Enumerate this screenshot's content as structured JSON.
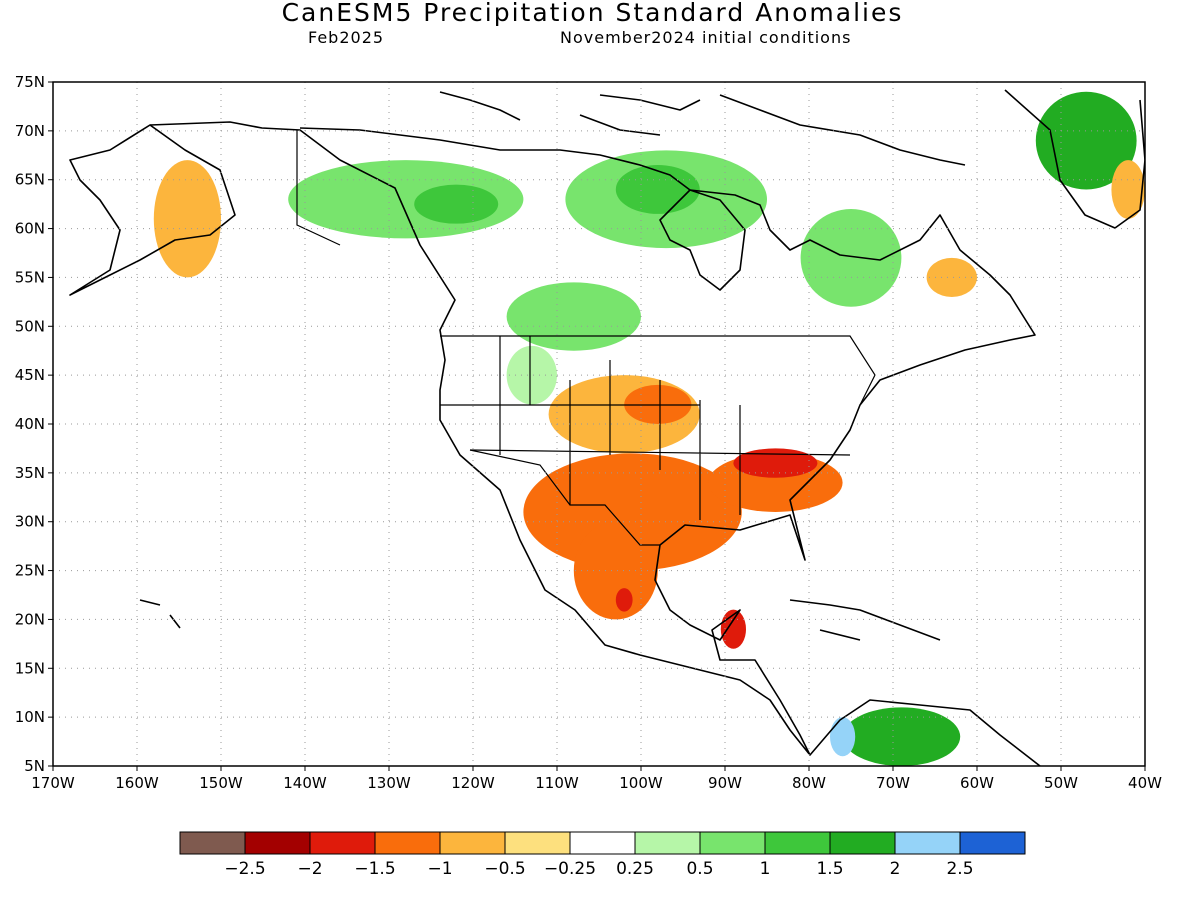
{
  "header": {
    "title": "CanESM5 Precipitation Standard Anomalies",
    "valid_month": "Feb2025",
    "initial_conditions": "November2024 initial conditions"
  },
  "map": {
    "lon_range": [
      -170,
      -40
    ],
    "lat_range": [
      5,
      75
    ],
    "lon_ticks": [
      "170W",
      "160W",
      "150W",
      "140W",
      "130W",
      "120W",
      "110W",
      "100W",
      "90W",
      "80W",
      "70W",
      "60W",
      "50W",
      "40W"
    ],
    "lat_ticks": [
      "75N",
      "70N",
      "65N",
      "60N",
      "55N",
      "50N",
      "45N",
      "40N",
      "35N",
      "30N",
      "25N",
      "20N",
      "15N",
      "10N",
      "5N"
    ],
    "grid": "dotted"
  },
  "colorbar": {
    "colors": [
      "#7f5a4f",
      "#a30000",
      "#df1b0b",
      "#f96d0c",
      "#fcb53d",
      "#fde07e",
      "#ffffff",
      "#b6f6a8",
      "#78e46d",
      "#3ec73b",
      "#22ac22",
      "#95d3f8",
      "#1d62d5"
    ],
    "labels": [
      "−2.5",
      "−2",
      "−1.5",
      "−1",
      "−0.5",
      "−0.25",
      "0.25",
      "0.5",
      "1",
      "1.5",
      "2",
      "2.5"
    ]
  },
  "regions": [
    {
      "name": "alaska-dry",
      "lon": -154,
      "lat": 61,
      "rx": 4,
      "ry": 6,
      "level": "-0.5"
    },
    {
      "name": "yukon-wet",
      "lon": -128,
      "lat": 63,
      "rx": 14,
      "ry": 4,
      "level": "0.5"
    },
    {
      "name": "yukon-wet-core",
      "lon": -122,
      "lat": 62.5,
      "rx": 5,
      "ry": 2,
      "level": "1"
    },
    {
      "name": "nunavut-wet",
      "lon": -97,
      "lat": 63,
      "rx": 12,
      "ry": 5,
      "level": "0.5"
    },
    {
      "name": "nunavut-wet-core",
      "lon": -98,
      "lat": 64,
      "rx": 5,
      "ry": 2.5,
      "level": "1"
    },
    {
      "name": "prairies-wet",
      "lon": -108,
      "lat": 51,
      "rx": 8,
      "ry": 3.5,
      "level": "0.5"
    },
    {
      "name": "rockies-wet",
      "lon": -113,
      "lat": 45,
      "rx": 3,
      "ry": 3,
      "level": "0.25"
    },
    {
      "name": "quebec-wet",
      "lon": -75,
      "lat": 57,
      "rx": 6,
      "ry": 5,
      "level": "0.5"
    },
    {
      "name": "labrador-dry",
      "lon": -63,
      "lat": 55,
      "rx": 3,
      "ry": 2,
      "level": "-0.5"
    },
    {
      "name": "greenland-wet",
      "lon": -47,
      "lat": 69,
      "rx": 6,
      "ry": 5,
      "level": "1.5"
    },
    {
      "name": "greenland-dry",
      "lon": -42,
      "lat": 64,
      "rx": 2,
      "ry": 3,
      "level": "-0.5"
    },
    {
      "name": "plains-dry",
      "lon": -102,
      "lat": 41,
      "rx": 9,
      "ry": 4,
      "level": "-0.5"
    },
    {
      "name": "plains-dry-core",
      "lon": -98,
      "lat": 42,
      "rx": 4,
      "ry": 2,
      "level": "-1"
    },
    {
      "name": "south-dry",
      "lon": -101,
      "lat": 31,
      "rx": 13,
      "ry": 6,
      "level": "-1"
    },
    {
      "name": "mexico-dry",
      "lon": -103,
      "lat": 25,
      "rx": 5,
      "ry": 5,
      "level": "-1"
    },
    {
      "name": "mexico-dry-core",
      "lon": -102,
      "lat": 22,
      "rx": 1,
      "ry": 1.2,
      "level": "-1.5"
    },
    {
      "name": "southeast-dry",
      "lon": -84,
      "lat": 34,
      "rx": 8,
      "ry": 3,
      "level": "-1"
    },
    {
      "name": "tennessee-very-dry",
      "lon": -84,
      "lat": 36,
      "rx": 5,
      "ry": 1.5,
      "level": "-1.5"
    },
    {
      "name": "yucatan-dry",
      "lon": -89,
      "lat": 19,
      "rx": 1.5,
      "ry": 2,
      "level": "-1.5"
    },
    {
      "name": "colombia-wet",
      "lon": -69,
      "lat": 8,
      "rx": 7,
      "ry": 3,
      "level": "1.5"
    },
    {
      "name": "colombia-very-wet",
      "lon": -76,
      "lat": 8,
      "rx": 1.5,
      "ry": 2,
      "level": "2"
    }
  ]
}
